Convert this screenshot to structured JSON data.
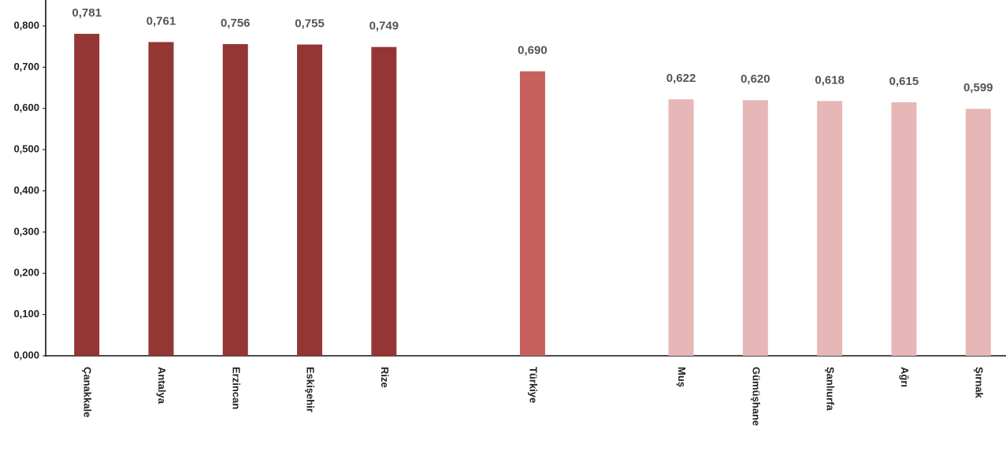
{
  "chart_data": {
    "type": "bar",
    "categories": [
      "Çanakkale",
      "Antalya",
      "Erzincan",
      "Eskişehir",
      "Rize",
      null,
      "Türkiye",
      null,
      "Muş",
      "Gümüşhane",
      "Şanlıurfa",
      "Ağrı",
      "Şırnak"
    ],
    "values": [
      0.781,
      0.761,
      0.756,
      0.755,
      0.749,
      null,
      0.69,
      null,
      0.622,
      0.62,
      0.618,
      0.615,
      0.599
    ],
    "value_labels": [
      "0,781",
      "0,761",
      "0,756",
      "0,755",
      "0,749",
      null,
      "0,690",
      null,
      "0,622",
      "0,620",
      "0,618",
      "0,615",
      "0,599"
    ],
    "colors": [
      "#943634",
      "#943634",
      "#943634",
      "#943634",
      "#943634",
      null,
      "#c5605d",
      null,
      "#e6b7b6",
      "#e6b7b6",
      "#e6b7b6",
      "#e6b7b6",
      "#e6b7b6"
    ],
    "ylim": [
      0,
      0.863
    ],
    "yticks": [
      {
        "value": 0,
        "label": "0,000"
      },
      {
        "value": 0.1,
        "label": "0,100"
      },
      {
        "value": 0.2,
        "label": "0,200"
      },
      {
        "value": 0.3,
        "label": "0,300"
      },
      {
        "value": 0.4,
        "label": "0,400"
      },
      {
        "value": 0.5,
        "label": "0,500"
      },
      {
        "value": 0.6,
        "label": "0,600"
      },
      {
        "value": 0.7,
        "label": "0,700"
      },
      {
        "value": 0.8,
        "label": "0,800"
      }
    ],
    "grid": false
  }
}
